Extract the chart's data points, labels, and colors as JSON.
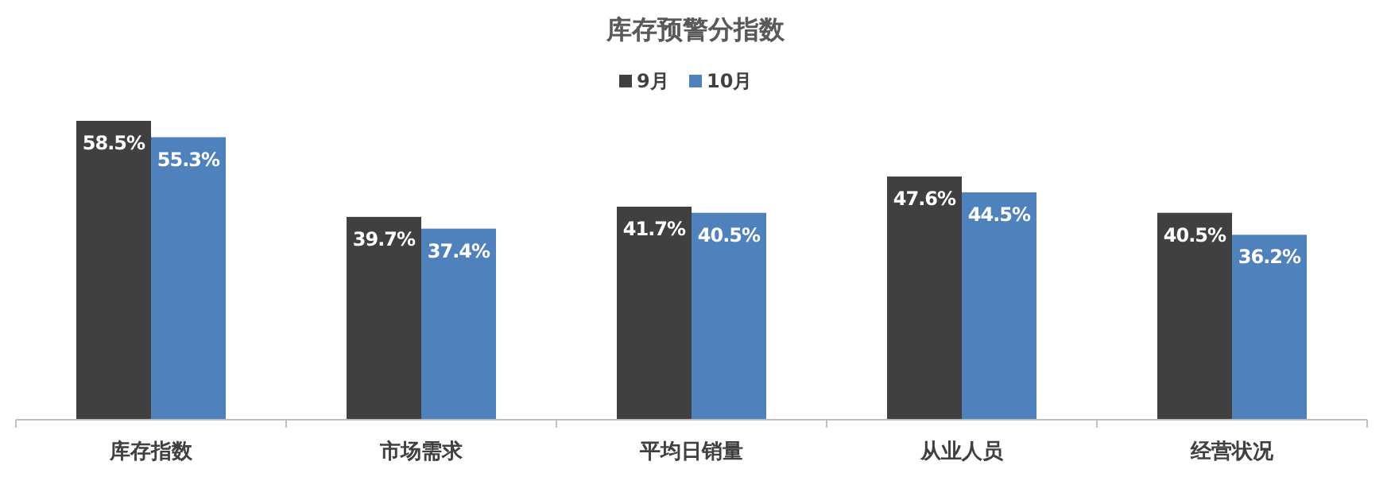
{
  "chart_data": {
    "type": "bar",
    "title": "库存预警分指数",
    "categories": [
      "库存指数",
      "市场需求",
      "平均日销量",
      "从业人员",
      "经营状况"
    ],
    "series": [
      {
        "name": "9月",
        "color": "#404040",
        "values": [
          58.5,
          39.7,
          41.7,
          47.6,
          40.5
        ],
        "value_labels": [
          "58.5%",
          "39.7%",
          "41.7%",
          "47.6%",
          "40.5%"
        ]
      },
      {
        "name": "10月",
        "color": "#4f81bd",
        "values": [
          55.3,
          37.4,
          40.5,
          44.5,
          36.2
        ],
        "value_labels": [
          "55.3%",
          "37.4%",
          "40.5%",
          "44.5%",
          "36.2%"
        ]
      }
    ],
    "legend": "top"
  }
}
